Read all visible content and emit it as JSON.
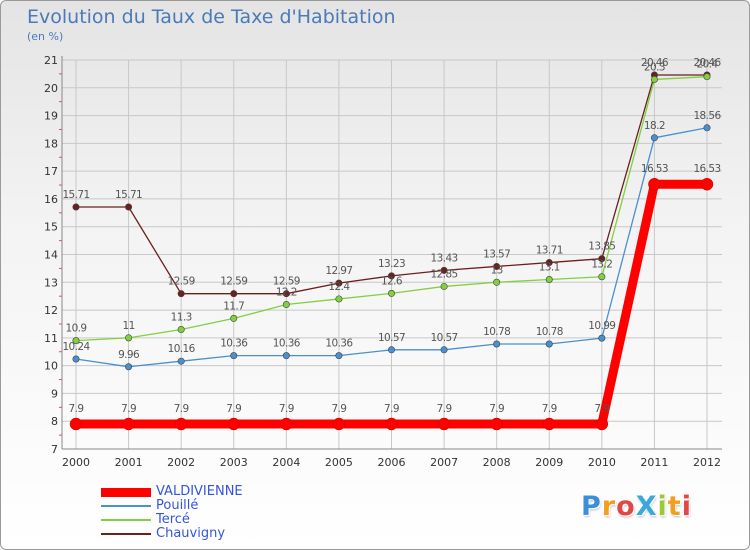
{
  "title": "Evolution du Taux de Taxe d'Habitation",
  "subtitle": "(en %)",
  "chart_data": {
    "type": "line",
    "categories": [
      "2000",
      "2001",
      "2002",
      "2003",
      "2004",
      "2005",
      "2006",
      "2007",
      "2008",
      "2009",
      "2010",
      "2011",
      "2012"
    ],
    "ylim": [
      7,
      21
    ],
    "yticks": [
      "7",
      "8",
      "9",
      "10",
      "11",
      "12",
      "13",
      "14",
      "15",
      "16",
      "17",
      "18",
      "19",
      "20",
      "21"
    ],
    "grid": true,
    "legend_position": "bottom-left",
    "series": [
      {
        "name": "VALDIVIENNE",
        "color": "#ff0000",
        "values": [
          7.9,
          7.9,
          7.9,
          7.9,
          7.9,
          7.9,
          7.9,
          7.9,
          7.9,
          7.9,
          7.9,
          16.53,
          16.53
        ],
        "labels": [
          "7.9",
          "7.9",
          "7.9",
          "7.9",
          "7.9",
          "7.9",
          "7.9",
          "7.9",
          "7.9",
          "7.9",
          "7.9",
          "16.53",
          "16.53"
        ]
      },
      {
        "name": "Pouillé",
        "color": "#4a8fcf",
        "values": [
          10.24,
          9.96,
          10.16,
          10.36,
          10.36,
          10.36,
          10.57,
          10.57,
          10.78,
          10.78,
          10.99,
          18.2,
          18.56
        ],
        "labels": [
          "10.24",
          "9.96",
          "10.16",
          "10.36",
          "10.36",
          "10.36",
          "10.57",
          "10.57",
          "10.78",
          "10.78",
          "10.99",
          "18.2",
          "18.56"
        ]
      },
      {
        "name": "Tercé",
        "color": "#80d040",
        "values": [
          10.9,
          11,
          11.3,
          11.7,
          12.2,
          12.4,
          12.6,
          12.85,
          13,
          13.1,
          13.2,
          20.3,
          20.4
        ],
        "labels": [
          "10.9",
          "11",
          "11.3",
          "11.7",
          "12.2",
          "12.4",
          "12.6",
          "12.85",
          "13",
          "13.1",
          "13.2",
          "20.3",
          "20.4"
        ]
      },
      {
        "name": "Chauvigny",
        "color": "#6b1f1f",
        "values": [
          15.71,
          15.71,
          12.59,
          12.59,
          12.59,
          12.97,
          13.23,
          13.43,
          13.57,
          13.71,
          13.85,
          20.46,
          20.46
        ],
        "labels": [
          "15.71",
          "15.71",
          "12.59",
          "12.59",
          "12.59",
          "12.97",
          "13.23",
          "13.43",
          "13.57",
          "13.71",
          "13.85",
          "20.46",
          "20.46"
        ]
      }
    ]
  },
  "logo": {
    "text": "ProXiti",
    "letters": [
      {
        "ch": "P",
        "color": "#3b8fd8"
      },
      {
        "ch": "r",
        "color": "#f0a020"
      },
      {
        "ch": "o",
        "color": "#e04848"
      },
      {
        "ch": "X",
        "color": "#3ba8d8"
      },
      {
        "ch": "i",
        "color": "#9bc83b"
      },
      {
        "ch": "t",
        "color": "#f0a020"
      },
      {
        "ch": "i",
        "color": "#e04848"
      }
    ]
  }
}
